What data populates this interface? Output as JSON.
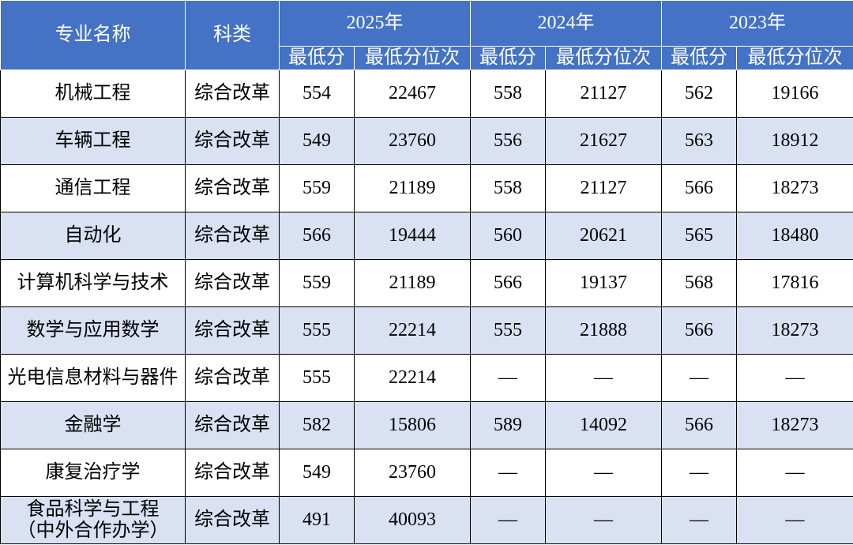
{
  "header": {
    "major": "专业名称",
    "category": "科类",
    "years": [
      {
        "year": "2025年",
        "sub": [
          "最低分",
          "最低分位次"
        ]
      },
      {
        "year": "2024年",
        "sub": [
          "最低分",
          "最低分位次"
        ]
      },
      {
        "year": "2023年",
        "sub": [
          "最低分",
          "最低分位次"
        ]
      }
    ]
  },
  "table": {
    "rows": [
      [
        "机械工程",
        "综合改革",
        554,
        22467,
        558,
        21127,
        562,
        19166
      ],
      [
        "车辆工程",
        "综合改革",
        549,
        23760,
        556,
        21627,
        563,
        18912
      ],
      [
        "通信工程",
        "综合改革",
        559,
        21189,
        558,
        21127,
        566,
        18273
      ],
      [
        "自动化",
        "综合改革",
        566,
        19444,
        560,
        20621,
        565,
        18480
      ],
      [
        "计算机科学与技术",
        "综合改革",
        559,
        21189,
        566,
        19137,
        568,
        17816
      ],
      [
        "数学与应用数学",
        "综合改革",
        555,
        22214,
        555,
        21888,
        566,
        18273
      ],
      [
        "光电信息材料与器件",
        "综合改革",
        555,
        22214,
        "—",
        "—",
        "—",
        "—"
      ],
      [
        "金融学",
        "综合改革",
        582,
        15806,
        589,
        14092,
        566,
        18273
      ],
      [
        "康复治疗学",
        "综合改革",
        549,
        23760,
        "—",
        "—",
        "—",
        "—"
      ],
      [
        "食品科学与工程\n（中外合作办学）",
        "综合改革",
        491,
        40093,
        "—",
        "—",
        "—",
        "—"
      ]
    ]
  }
}
